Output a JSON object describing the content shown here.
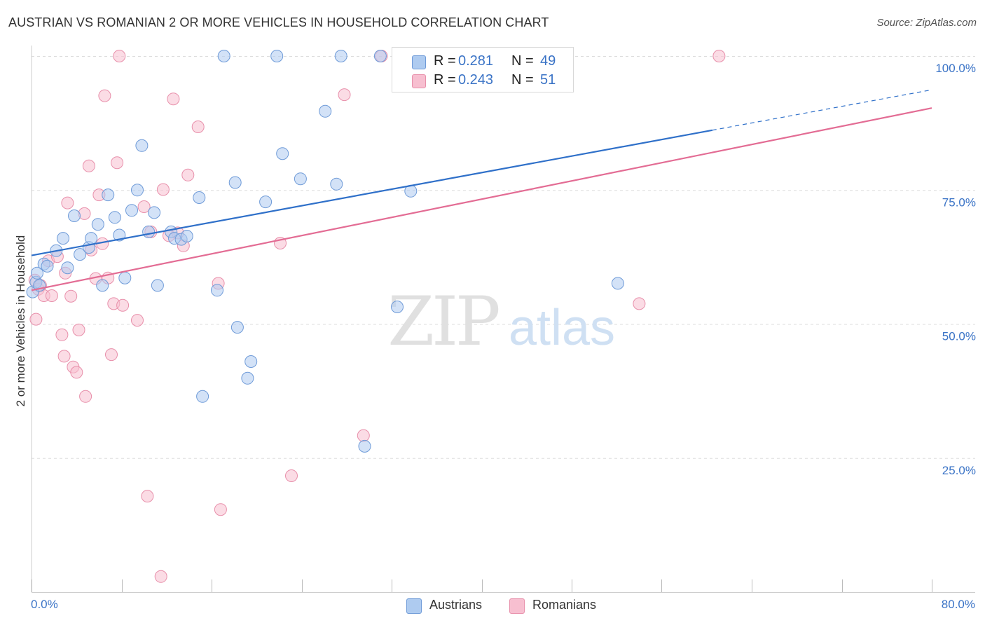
{
  "title": "AUSTRIAN VS ROMANIAN 2 OR MORE VEHICLES IN HOUSEHOLD CORRELATION CHART",
  "source": "Source: ZipAtlas.com",
  "watermark": {
    "zip": "ZIP",
    "atlas": "atlas"
  },
  "stats": [
    {
      "r_label": "R =",
      "r_value": "0.281",
      "n_label": "N =",
      "n_value": "49"
    },
    {
      "r_label": "R =",
      "r_value": "0.243",
      "n_label": "N =",
      "n_value": "51"
    }
  ],
  "legend": [
    "Austrians",
    "Romanians"
  ],
  "x_axis": {
    "min_label": "0.0%",
    "max_label": "80.0%"
  },
  "colors": {
    "austrian_fill": "#aecbf0",
    "austrian_stroke": "#6f9bd8",
    "austrian_line": "#2f70c9",
    "romanian_fill": "#f7bfd0",
    "romanian_stroke": "#e890ab",
    "romanian_line": "#e36c94",
    "grid": "#dddddd",
    "tick_label": "#3a73c6"
  },
  "chart_data": {
    "type": "scatter",
    "title": "AUSTRIAN VS ROMANIAN 2 OR MORE VEHICLES IN HOUSEHOLD CORRELATION CHART",
    "xlabel": "",
    "ylabel": "2 or more Vehicles in Household",
    "xlim": [
      0,
      80
    ],
    "ylim": [
      0,
      102
    ],
    "y_ticks": [
      25,
      50,
      75,
      100
    ],
    "y_tick_labels": [
      "25.0%",
      "50.0%",
      "75.0%",
      "100.0%"
    ],
    "x_tick_labels": [
      "0.0%",
      "80.0%"
    ],
    "series": [
      {
        "name": "Austrians",
        "r": 0.281,
        "n": 49,
        "trend": {
          "x0": 0,
          "y0": 62.8,
          "x1": 80,
          "y1": 93.7,
          "solid_until": 60.5
        },
        "points": [
          [
            0.1,
            56.0
          ],
          [
            0.4,
            57.8
          ],
          [
            0.5,
            59.5
          ],
          [
            0.7,
            57.2
          ],
          [
            1.1,
            61.2
          ],
          [
            1.4,
            60.8
          ],
          [
            2.2,
            63.7
          ],
          [
            2.8,
            66.0
          ],
          [
            3.2,
            60.5
          ],
          [
            3.8,
            70.2
          ],
          [
            4.3,
            63.0
          ],
          [
            5.1,
            64.3
          ],
          [
            5.3,
            66.0
          ],
          [
            5.9,
            68.6
          ],
          [
            6.3,
            57.2
          ],
          [
            6.8,
            74.1
          ],
          [
            7.4,
            69.9
          ],
          [
            7.8,
            66.6
          ],
          [
            8.3,
            58.6
          ],
          [
            8.9,
            71.2
          ],
          [
            9.4,
            75.0
          ],
          [
            9.8,
            83.3
          ],
          [
            10.4,
            67.2
          ],
          [
            10.9,
            70.8
          ],
          [
            11.2,
            57.2
          ],
          [
            12.4,
            67.2
          ],
          [
            12.7,
            66.0
          ],
          [
            13.3,
            65.8
          ],
          [
            13.8,
            66.4
          ],
          [
            14.9,
            73.6
          ],
          [
            15.2,
            36.5
          ],
          [
            16.5,
            56.3
          ],
          [
            17.1,
            100.0
          ],
          [
            18.1,
            76.4
          ],
          [
            18.3,
            49.4
          ],
          [
            19.2,
            39.9
          ],
          [
            19.5,
            43.0
          ],
          [
            20.8,
            72.8
          ],
          [
            21.8,
            100.0
          ],
          [
            22.3,
            81.8
          ],
          [
            23.9,
            77.1
          ],
          [
            26.1,
            89.7
          ],
          [
            27.1,
            76.1
          ],
          [
            27.5,
            100.0
          ],
          [
            29.6,
            27.2
          ],
          [
            31.0,
            100.0
          ],
          [
            32.5,
            53.2
          ],
          [
            33.7,
            74.8
          ],
          [
            52.1,
            57.6
          ]
        ]
      },
      {
        "name": "Romanians",
        "r": 0.243,
        "n": 51,
        "trend": {
          "x0": 0,
          "y0": 56.3,
          "x1": 80,
          "y1": 90.3
        },
        "points": [
          [
            0.3,
            58.2
          ],
          [
            0.4,
            50.9
          ],
          [
            0.6,
            56.5
          ],
          [
            0.8,
            57.2
          ],
          [
            1.1,
            55.3
          ],
          [
            1.5,
            61.8
          ],
          [
            1.8,
            55.3
          ],
          [
            2.3,
            62.6
          ],
          [
            2.7,
            48.0
          ],
          [
            3.0,
            59.5
          ],
          [
            2.9,
            44.0
          ],
          [
            3.2,
            72.6
          ],
          [
            3.5,
            55.2
          ],
          [
            3.7,
            42.0
          ],
          [
            4.0,
            41.0
          ],
          [
            4.2,
            48.9
          ],
          [
            4.7,
            70.6
          ],
          [
            4.8,
            36.5
          ],
          [
            5.1,
            79.5
          ],
          [
            5.3,
            63.8
          ],
          [
            5.7,
            58.5
          ],
          [
            6.0,
            74.1
          ],
          [
            6.3,
            65.0
          ],
          [
            6.5,
            92.6
          ],
          [
            6.8,
            58.6
          ],
          [
            7.1,
            44.3
          ],
          [
            7.3,
            53.8
          ],
          [
            7.6,
            80.1
          ],
          [
            7.8,
            100.0
          ],
          [
            8.1,
            53.5
          ],
          [
            9.4,
            50.7
          ],
          [
            10.0,
            71.9
          ],
          [
            10.3,
            17.9
          ],
          [
            10.6,
            67.2
          ],
          [
            11.5,
            2.9
          ],
          [
            11.7,
            75.1
          ],
          [
            12.2,
            66.5
          ],
          [
            12.6,
            92.0
          ],
          [
            13.0,
            67.0
          ],
          [
            13.5,
            64.6
          ],
          [
            13.9,
            77.8
          ],
          [
            14.8,
            86.8
          ],
          [
            16.6,
            57.6
          ],
          [
            16.8,
            15.4
          ],
          [
            22.1,
            65.1
          ],
          [
            23.1,
            21.7
          ],
          [
            27.8,
            92.8
          ],
          [
            29.5,
            29.2
          ],
          [
            31.1,
            100.0
          ],
          [
            54.0,
            53.8
          ],
          [
            61.1,
            100.0
          ]
        ]
      }
    ]
  }
}
